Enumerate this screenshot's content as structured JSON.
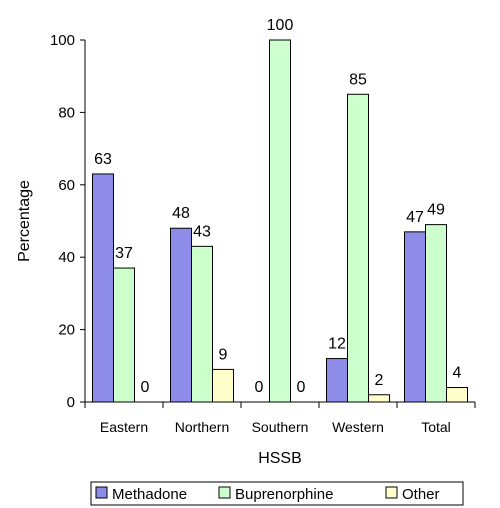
{
  "chart_data": {
    "type": "bar",
    "title": "",
    "xlabel": "HSSB",
    "ylabel": "Percentage",
    "ylim": [
      0,
      100
    ],
    "yticks": [
      0,
      20,
      40,
      60,
      80,
      100
    ],
    "grid": false,
    "legend_position": "bottom",
    "categories": [
      "Eastern",
      "Northern",
      "Southern",
      "Western",
      "Total"
    ],
    "series": [
      {
        "name": "Methadone",
        "color": "#8d8ce8",
        "values": [
          63,
          48,
          0,
          12,
          47
        ]
      },
      {
        "name": "Buprenorphine",
        "color": "#ccffcc",
        "values": [
          37,
          43,
          100,
          85,
          49
        ]
      },
      {
        "name": "Other",
        "color": "#ffffcc",
        "values": [
          0,
          9,
          0,
          2,
          4
        ]
      }
    ]
  }
}
